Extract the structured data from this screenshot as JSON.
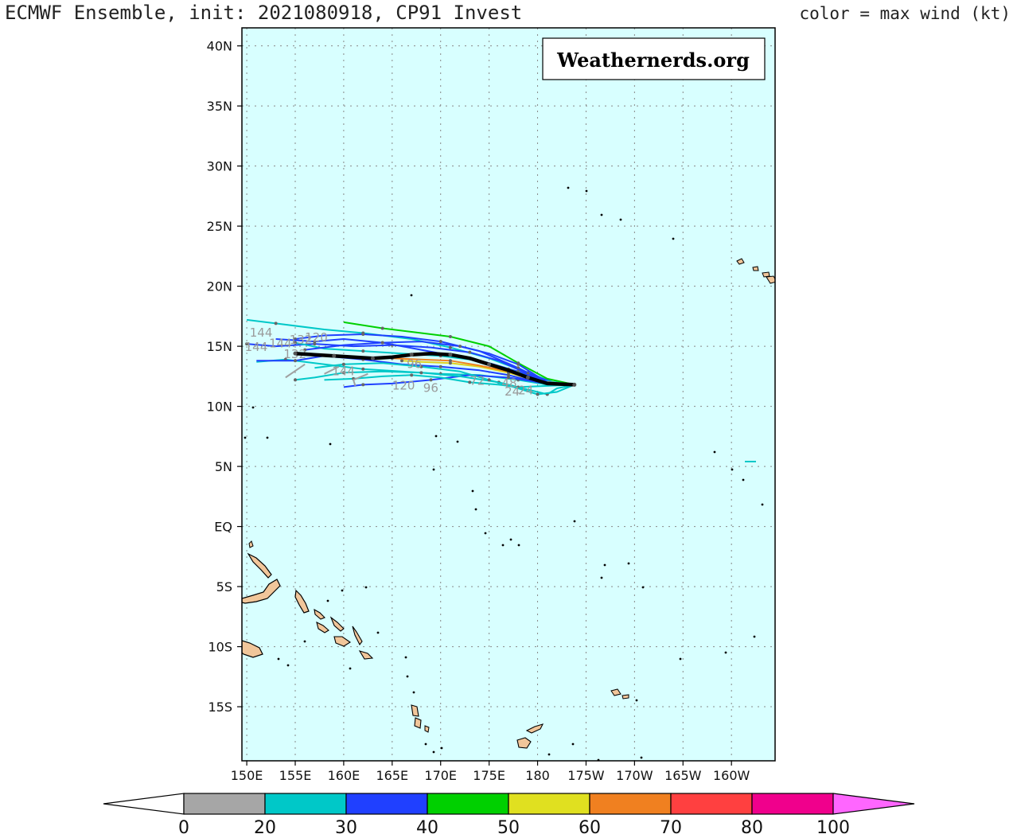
{
  "header": {
    "title": "ECMWF Ensemble, init: 2021080918, CP91 Invest",
    "color_note": "color = max wind (kt)"
  },
  "watermark": "Weathernerds.org",
  "map": {
    "lat_range": [
      -19.5,
      41.5
    ],
    "lon_range": [
      149.5,
      204.5
    ],
    "lat_ticks": [
      {
        "lat": 40,
        "label": "40N"
      },
      {
        "lat": 35,
        "label": "35N"
      },
      {
        "lat": 30,
        "label": "30N"
      },
      {
        "lat": 25,
        "label": "25N"
      },
      {
        "lat": 20,
        "label": "20N"
      },
      {
        "lat": 15,
        "label": "15N"
      },
      {
        "lat": 10,
        "label": "10N"
      },
      {
        "lat": 5,
        "label": "5N"
      },
      {
        "lat": 0,
        "label": "EQ"
      },
      {
        "lat": -5,
        "label": "5S"
      },
      {
        "lat": -10,
        "label": "10S"
      },
      {
        "lat": -15,
        "label": "15S"
      }
    ],
    "lon_ticks": [
      {
        "lon": 150,
        "label": "150E"
      },
      {
        "lon": 155,
        "label": "155E"
      },
      {
        "lon": 160,
        "label": "160E"
      },
      {
        "lon": 165,
        "label": "165E"
      },
      {
        "lon": 170,
        "label": "170E"
      },
      {
        "lon": 175,
        "label": "175E"
      },
      {
        "lon": 180,
        "label": "180"
      },
      {
        "lon": 185,
        "label": "175W"
      },
      {
        "lon": 190,
        "label": "170W"
      },
      {
        "lon": 195,
        "label": "165W"
      },
      {
        "lon": 200,
        "label": "160W"
      }
    ],
    "ensemble_mean": [
      [
        183.8,
        11.8
      ],
      [
        181,
        11.9
      ],
      [
        179,
        12.4
      ],
      [
        177,
        13.0
      ],
      [
        175,
        13.5
      ],
      [
        173,
        14.0
      ],
      [
        171,
        14.3
      ],
      [
        169,
        14.4
      ],
      [
        167,
        14.3
      ],
      [
        165,
        14.1
      ],
      [
        163,
        14.0
      ],
      [
        161,
        14.1
      ],
      [
        159,
        14.2
      ],
      [
        157,
        14.3
      ],
      [
        155,
        14.4
      ]
    ],
    "members": [
      {
        "color": "#00c8c8",
        "pts": [
          [
            183.8,
            11.8
          ],
          [
            182,
            11.9
          ],
          [
            179,
            12.8
          ],
          [
            175,
            14.0
          ],
          [
            171,
            14.9
          ],
          [
            167,
            15.6
          ],
          [
            162,
            16.1
          ],
          [
            158,
            16.4
          ],
          [
            153,
            16.9
          ],
          [
            150,
            17.2
          ]
        ]
      },
      {
        "color": "#2040ff",
        "pts": [
          [
            183.8,
            11.8
          ],
          [
            181,
            12.0
          ],
          [
            178,
            13.2
          ],
          [
            174,
            14.6
          ],
          [
            170,
            15.4
          ],
          [
            166,
            15.8
          ],
          [
            162,
            16.0
          ],
          [
            158,
            15.9
          ],
          [
            155,
            15.6
          ]
        ]
      },
      {
        "color": "#00d000",
        "pts": [
          [
            183.8,
            11.8
          ],
          [
            181,
            12.3
          ],
          [
            178,
            13.6
          ],
          [
            175,
            15.0
          ],
          [
            171,
            15.8
          ],
          [
            167,
            16.2
          ],
          [
            164,
            16.5
          ],
          [
            160,
            17.0
          ]
        ]
      },
      {
        "color": "#00c8c8",
        "pts": [
          [
            183.8,
            11.8
          ],
          [
            181,
            11.8
          ],
          [
            178,
            12.2
          ],
          [
            174,
            12.6
          ],
          [
            170,
            12.7
          ],
          [
            166,
            12.9
          ],
          [
            162,
            13.1
          ],
          [
            158,
            13.5
          ],
          [
            154,
            13.9
          ],
          [
            151,
            13.7
          ]
        ]
      },
      {
        "color": "#2040ff",
        "pts": [
          [
            183.8,
            11.8
          ],
          [
            181,
            11.9
          ],
          [
            177,
            12.4
          ],
          [
            173,
            12.6
          ],
          [
            169,
            12.2
          ],
          [
            165,
            11.9
          ],
          [
            162,
            11.8
          ],
          [
            160,
            11.6
          ]
        ]
      },
      {
        "color": "#2040ff",
        "pts": [
          [
            183.8,
            11.8
          ],
          [
            182,
            11.9
          ],
          [
            179,
            12.7
          ],
          [
            176,
            13.8
          ],
          [
            173,
            14.5
          ],
          [
            169,
            14.9
          ],
          [
            165,
            15.1
          ],
          [
            161,
            15.0
          ],
          [
            157,
            15.2
          ],
          [
            153,
            15.0
          ],
          [
            150,
            15.2
          ]
        ]
      },
      {
        "color": "#00c8c8",
        "pts": [
          [
            183.8,
            11.8
          ],
          [
            182,
            11.5
          ],
          [
            181,
            11.0
          ],
          [
            179,
            11.4
          ],
          [
            176,
            12.0
          ],
          [
            172,
            12.5
          ],
          [
            168,
            12.8
          ],
          [
            164,
            12.9
          ],
          [
            160,
            12.8
          ],
          [
            157,
            12.4
          ],
          [
            155,
            12.2
          ]
        ]
      },
      {
        "color": "#2040ff",
        "pts": [
          [
            183.8,
            11.8
          ],
          [
            181,
            12.0
          ],
          [
            178,
            12.9
          ],
          [
            175,
            13.6
          ],
          [
            172,
            14.1
          ],
          [
            168,
            14.7
          ],
          [
            164,
            15.3
          ],
          [
            160,
            15.6
          ],
          [
            157,
            15.4
          ],
          [
            153,
            15.6
          ]
        ]
      },
      {
        "color": "#00c8c8",
        "pts": [
          [
            183.8,
            11.8
          ],
          [
            180,
            12.2
          ],
          [
            177,
            13.1
          ],
          [
            174,
            13.8
          ],
          [
            170,
            14.2
          ],
          [
            166,
            14.4
          ],
          [
            162,
            14.6
          ],
          [
            158,
            14.8
          ],
          [
            155,
            15.3
          ]
        ]
      },
      {
        "color": "#2040ff",
        "pts": [
          [
            183.8,
            11.8
          ],
          [
            180,
            12.0
          ],
          [
            177,
            12.6
          ],
          [
            174,
            13.0
          ],
          [
            170,
            13.3
          ],
          [
            166,
            13.5
          ],
          [
            162,
            13.9
          ],
          [
            158,
            14.2
          ],
          [
            155,
            13.8
          ],
          [
            151,
            13.8
          ]
        ]
      },
      {
        "color": "#e0d020",
        "pts": [
          [
            183.8,
            11.8
          ],
          [
            180,
            12.1
          ],
          [
            177,
            12.8
          ],
          [
            174,
            13.3
          ],
          [
            171,
            13.6
          ],
          [
            168,
            13.7
          ],
          [
            166,
            13.8
          ]
        ]
      },
      {
        "color": "#f08020",
        "pts": [
          [
            183.8,
            11.8
          ],
          [
            180,
            12.1
          ],
          [
            177,
            12.9
          ],
          [
            174,
            13.4
          ],
          [
            171,
            13.8
          ],
          [
            168,
            13.9
          ],
          [
            165,
            14.0
          ]
        ]
      },
      {
        "color": "#00c8c8",
        "pts": [
          [
            183.8,
            11.8
          ],
          [
            181,
            11.7
          ],
          [
            178,
            11.6
          ],
          [
            176,
            11.8
          ],
          [
            173,
            12.0
          ],
          [
            170,
            12.4
          ],
          [
            167,
            12.6
          ],
          [
            164,
            12.5
          ],
          [
            161,
            12.3
          ],
          [
            158,
            12.2
          ]
        ]
      },
      {
        "color": "#2040ff",
        "pts": [
          [
            183.8,
            11.8
          ],
          [
            181,
            12.0
          ],
          [
            178,
            13.5
          ],
          [
            175,
            14.4
          ],
          [
            172,
            15.0
          ],
          [
            168,
            15.4
          ],
          [
            164,
            15.3
          ],
          [
            160,
            15.1
          ],
          [
            156,
            14.7
          ]
        ]
      },
      {
        "color": "#00c8c8",
        "pts": [
          [
            183.8,
            11.8
          ],
          [
            182,
            11.2
          ],
          [
            180,
            11.0
          ],
          [
            178,
            11.5
          ],
          [
            175,
            12.2
          ],
          [
            172,
            12.9
          ],
          [
            168,
            13.3
          ],
          [
            164,
            13.6
          ],
          [
            160,
            13.5
          ],
          [
            157,
            13.2
          ]
        ]
      }
    ],
    "lead_labels": [
      {
        "text": "144",
        "lon": 150.3,
        "lat": 15.8
      },
      {
        "text": "144",
        "lon": 149.8,
        "lat": 14.6
      },
      {
        "text": "144",
        "lon": 152.3,
        "lat": 14.9
      },
      {
        "text": "132",
        "lon": 154.4,
        "lat": 15.2
      },
      {
        "text": "132",
        "lon": 153.8,
        "lat": 14.0
      },
      {
        "text": "120",
        "lon": 156.0,
        "lat": 15.4
      },
      {
        "text": "144",
        "lon": 158.8,
        "lat": 12.6
      },
      {
        "text": "120",
        "lon": 165.0,
        "lat": 11.4
      },
      {
        "text": "96",
        "lon": 168.2,
        "lat": 11.2
      },
      {
        "text": "96",
        "lon": 166.5,
        "lat": 13.2
      },
      {
        "text": "72",
        "lon": 173.0,
        "lat": 11.8
      },
      {
        "text": "48",
        "lon": 176.3,
        "lat": 11.6
      },
      {
        "text": "24",
        "lon": 176.6,
        "lat": 10.9
      },
      {
        "text": "24",
        "lon": 178.0,
        "lat": 11.0
      }
    ]
  },
  "colorbar": {
    "labels": [
      "0",
      "20",
      "30",
      "40",
      "50",
      "60",
      "70",
      "80",
      "100"
    ],
    "colors": [
      "#a6a6a6",
      "#00c8c8",
      "#2040ff",
      "#00d000",
      "#e0e020",
      "#f08020",
      "#ff4040",
      "#f0008c"
    ],
    "over_color": "#ff66ff",
    "under_color": "#ffffff"
  }
}
